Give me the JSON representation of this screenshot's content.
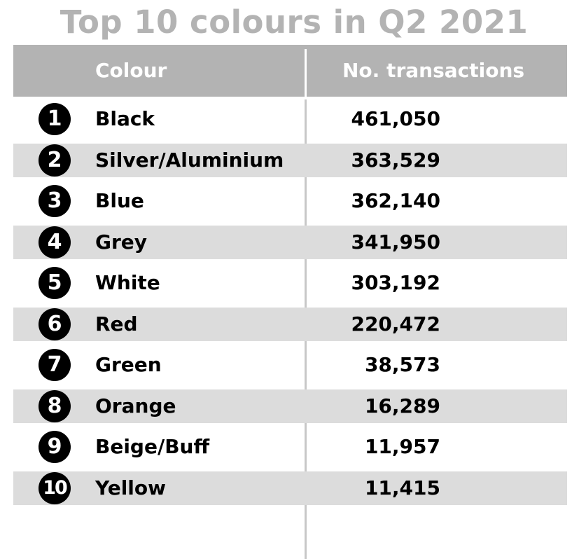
{
  "title": "Top 10 colours in Q2 2021",
  "chart_data": {
    "type": "table",
    "title": "Top 10 colours in Q2 2021",
    "columns": [
      "Colour",
      "No. transactions"
    ],
    "rows": [
      {
        "rank": "1",
        "colour": "Black",
        "transactions": "461,050",
        "value": 461050
      },
      {
        "rank": "2",
        "colour": "Silver/Aluminium",
        "transactions": "363,529",
        "value": 363529
      },
      {
        "rank": "3",
        "colour": "Blue",
        "transactions": "362,140",
        "value": 362140
      },
      {
        "rank": "4",
        "colour": "Grey",
        "transactions": "341,950",
        "value": 341950
      },
      {
        "rank": "5",
        "colour": "White",
        "transactions": "303,192",
        "value": 303192
      },
      {
        "rank": "6",
        "colour": "Red",
        "transactions": "220,472",
        "value": 220472
      },
      {
        "rank": "7",
        "colour": "Green",
        "transactions": "38,573",
        "value": 38573
      },
      {
        "rank": "8",
        "colour": "Orange",
        "transactions": "16,289",
        "value": 16289
      },
      {
        "rank": "9",
        "colour": "Beige/Buff",
        "transactions": "11,957",
        "value": 11957
      },
      {
        "rank": "10",
        "colour": "Yellow",
        "transactions": "11,415",
        "value": 11415
      }
    ]
  },
  "colors": {
    "header_bg": "#b3b3b3",
    "shaded_row": "#dcdcdc",
    "badge": "#000000",
    "title": "#b3b3b3"
  }
}
